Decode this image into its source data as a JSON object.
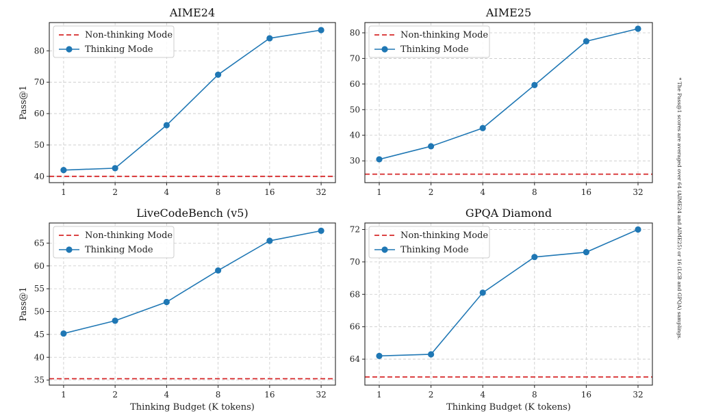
{
  "chart_data": [
    {
      "type": "line",
      "title": "AIME24",
      "xlabel": "",
      "ylabel": "Pass@1",
      "x": [
        1,
        2,
        4,
        8,
        16,
        32
      ],
      "xscale": "log2",
      "ylim": [
        38,
        89
      ],
      "yticks": [
        40,
        50,
        60,
        70,
        80
      ],
      "grid": true,
      "legend_position": "top-left",
      "series": [
        {
          "name": "Thinking Mode",
          "color": "#1f77b4",
          "values": [
            42.0,
            42.6,
            56.3,
            72.4,
            84.0,
            86.6
          ]
        }
      ],
      "baseline": {
        "name": "Non-thinking Mode",
        "color": "#d62728",
        "value": 40.0
      }
    },
    {
      "type": "line",
      "title": "AIME25",
      "xlabel": "",
      "ylabel": "",
      "x": [
        1,
        2,
        4,
        8,
        16,
        32
      ],
      "xscale": "log2",
      "ylim": [
        21.5,
        84
      ],
      "yticks": [
        30,
        40,
        50,
        60,
        70,
        80
      ],
      "grid": true,
      "legend_position": "top-left",
      "series": [
        {
          "name": "Thinking Mode",
          "color": "#1f77b4",
          "values": [
            30.6,
            35.7,
            42.8,
            59.6,
            76.7,
            81.6
          ]
        }
      ],
      "baseline": {
        "name": "Non-thinking Mode",
        "color": "#d62728",
        "value": 24.8
      }
    },
    {
      "type": "line",
      "title": "LiveCodeBench (v5)",
      "xlabel": "Thinking Budget (K tokens)",
      "ylabel": "Pass@1",
      "x": [
        1,
        2,
        4,
        8,
        16,
        32
      ],
      "xscale": "log2",
      "ylim": [
        33.9,
        69.4
      ],
      "yticks": [
        35,
        40,
        45,
        50,
        55,
        60,
        65
      ],
      "grid": true,
      "legend_position": "top-left",
      "series": [
        {
          "name": "Thinking Mode",
          "color": "#1f77b4",
          "values": [
            45.2,
            48.0,
            52.1,
            59.0,
            65.5,
            67.7
          ]
        }
      ],
      "baseline": {
        "name": "Non-thinking Mode",
        "color": "#d62728",
        "value": 35.3
      }
    },
    {
      "type": "line",
      "title": "GPQA Diamond",
      "xlabel": "Thinking Budget (K tokens)",
      "ylabel": "",
      "x": [
        1,
        2,
        4,
        8,
        16,
        32
      ],
      "xscale": "log2",
      "ylim": [
        62.4,
        72.4
      ],
      "yticks": [
        64,
        66,
        68,
        70,
        72
      ],
      "grid": true,
      "legend_position": "top-left",
      "series": [
        {
          "name": "Thinking Mode",
          "color": "#1f77b4",
          "values": [
            64.2,
            64.3,
            68.1,
            70.3,
            70.6,
            72.0
          ]
        }
      ],
      "baseline": {
        "name": "Non-thinking Mode",
        "color": "#d62728",
        "value": 62.9
      }
    }
  ],
  "x_tick_labels": [
    "1",
    "2",
    "4",
    "8",
    "16",
    "32"
  ],
  "footnote": "* The Pass@1 scores are averaged over 64 (AIME24 and AIME25) or 16 (LCB and GPQA) samplings."
}
